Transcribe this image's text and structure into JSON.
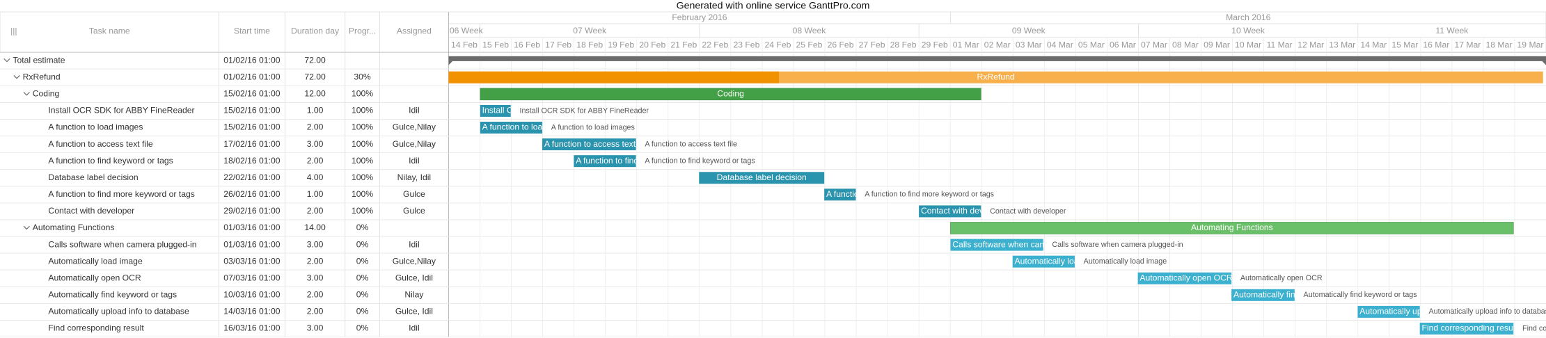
{
  "header": {
    "title": "Generated with online service GanttPro.com"
  },
  "table": {
    "columns": [
      "Task name",
      "Start time",
      "Duration day",
      "Progr...",
      "Assigned"
    ],
    "rows": [
      {
        "name": "Total estimate",
        "start": "01/02/16 01:00",
        "duration": "72.00"
      },
      {
        "name": "RxRefund",
        "start": "01/02/16 01:00",
        "duration": "72.00",
        "progress": "30%"
      },
      {
        "name": "Coding",
        "start": "15/02/16 01:00",
        "duration": "12.00",
        "progress": "100%"
      },
      {
        "name": "Install OCR SDK for ABBY FineReader",
        "start": "15/02/16 01:00",
        "duration": "1.00",
        "progress": "100%",
        "assigned": "Idil"
      },
      {
        "name": "A function to load images",
        "start": "15/02/16 01:00",
        "duration": "2.00",
        "progress": "100%",
        "assigned": "Gulce,Nilay"
      },
      {
        "name": "A function to access text file",
        "start": "17/02/16 01:00",
        "duration": "3.00",
        "progress": "100%",
        "assigned": "Gulce,Nilay"
      },
      {
        "name": "A function to find keyword or tags",
        "start": "18/02/16 01:00",
        "duration": "2.00",
        "progress": "100%",
        "assigned": "Idil"
      },
      {
        "name": "Database label decision",
        "start": "22/02/16 01:00",
        "duration": "4.00",
        "progress": "100%",
        "assigned": "Nilay, Idil"
      },
      {
        "name": "A function to find more keyword or tags",
        "start": "26/02/16 01:00",
        "duration": "1.00",
        "progress": "100%",
        "assigned": "Gulce"
      },
      {
        "name": "Contact with developer",
        "start": "29/02/16 01:00",
        "duration": "2.00",
        "progress": "100%",
        "assigned": "Gulce"
      },
      {
        "name": "Automating Functions",
        "start": "01/03/16 01:00",
        "duration": "14.00",
        "progress": "0%"
      },
      {
        "name": "Calls software when camera plugged-in",
        "start": "01/03/16 01:00",
        "duration": "3.00",
        "progress": "0%",
        "assigned": "Idil"
      },
      {
        "name": "Automatically load image",
        "start": "03/03/16 01:00",
        "duration": "2.00",
        "progress": "0%",
        "assigned": "Gulce,Nilay"
      },
      {
        "name": "Automatically open OCR",
        "start": "07/03/16 01:00",
        "duration": "3.00",
        "progress": "0%",
        "assigned": "Gulce, Idil"
      },
      {
        "name": "Automatically find keyword or tags",
        "start": "10/03/16 01:00",
        "duration": "2.00",
        "progress": "0%",
        "assigned": "Nilay"
      },
      {
        "name": "Automatically upload info to database",
        "start": "14/03/16 01:00",
        "duration": "2.00",
        "progress": "0%",
        "assigned": "Gulce, Idil"
      },
      {
        "name": "Find corresponding result",
        "start": "16/03/16 01:00",
        "duration": "3.00",
        "progress": "0%",
        "assigned": "Idil"
      }
    ]
  },
  "timeline": {
    "months": [
      "February 2016",
      "March 2016"
    ],
    "weeks": [
      "06 Week",
      "07 Week",
      "08 Week",
      "09 Week",
      "10 Week",
      "11 Week"
    ],
    "days": [
      "14 Feb",
      "15 Feb",
      "16 Feb",
      "17 Feb",
      "18 Feb",
      "19 Feb",
      "20 Feb",
      "21 Feb",
      "22 Feb",
      "23 Feb",
      "24 Feb",
      "25 Feb",
      "26 Feb",
      "27 Feb",
      "28 Feb",
      "29 Feb",
      "01 Mar",
      "02 Mar",
      "03 Mar",
      "04 Mar",
      "05 Mar",
      "06 Mar",
      "07 Mar",
      "08 Mar",
      "09 Mar",
      "10 Mar",
      "11 Mar",
      "12 Mar",
      "13 Mar",
      "14 Mar",
      "15 Mar",
      "16 Mar",
      "17 Mar",
      "18 Mar",
      "19 Mar"
    ]
  }
}
